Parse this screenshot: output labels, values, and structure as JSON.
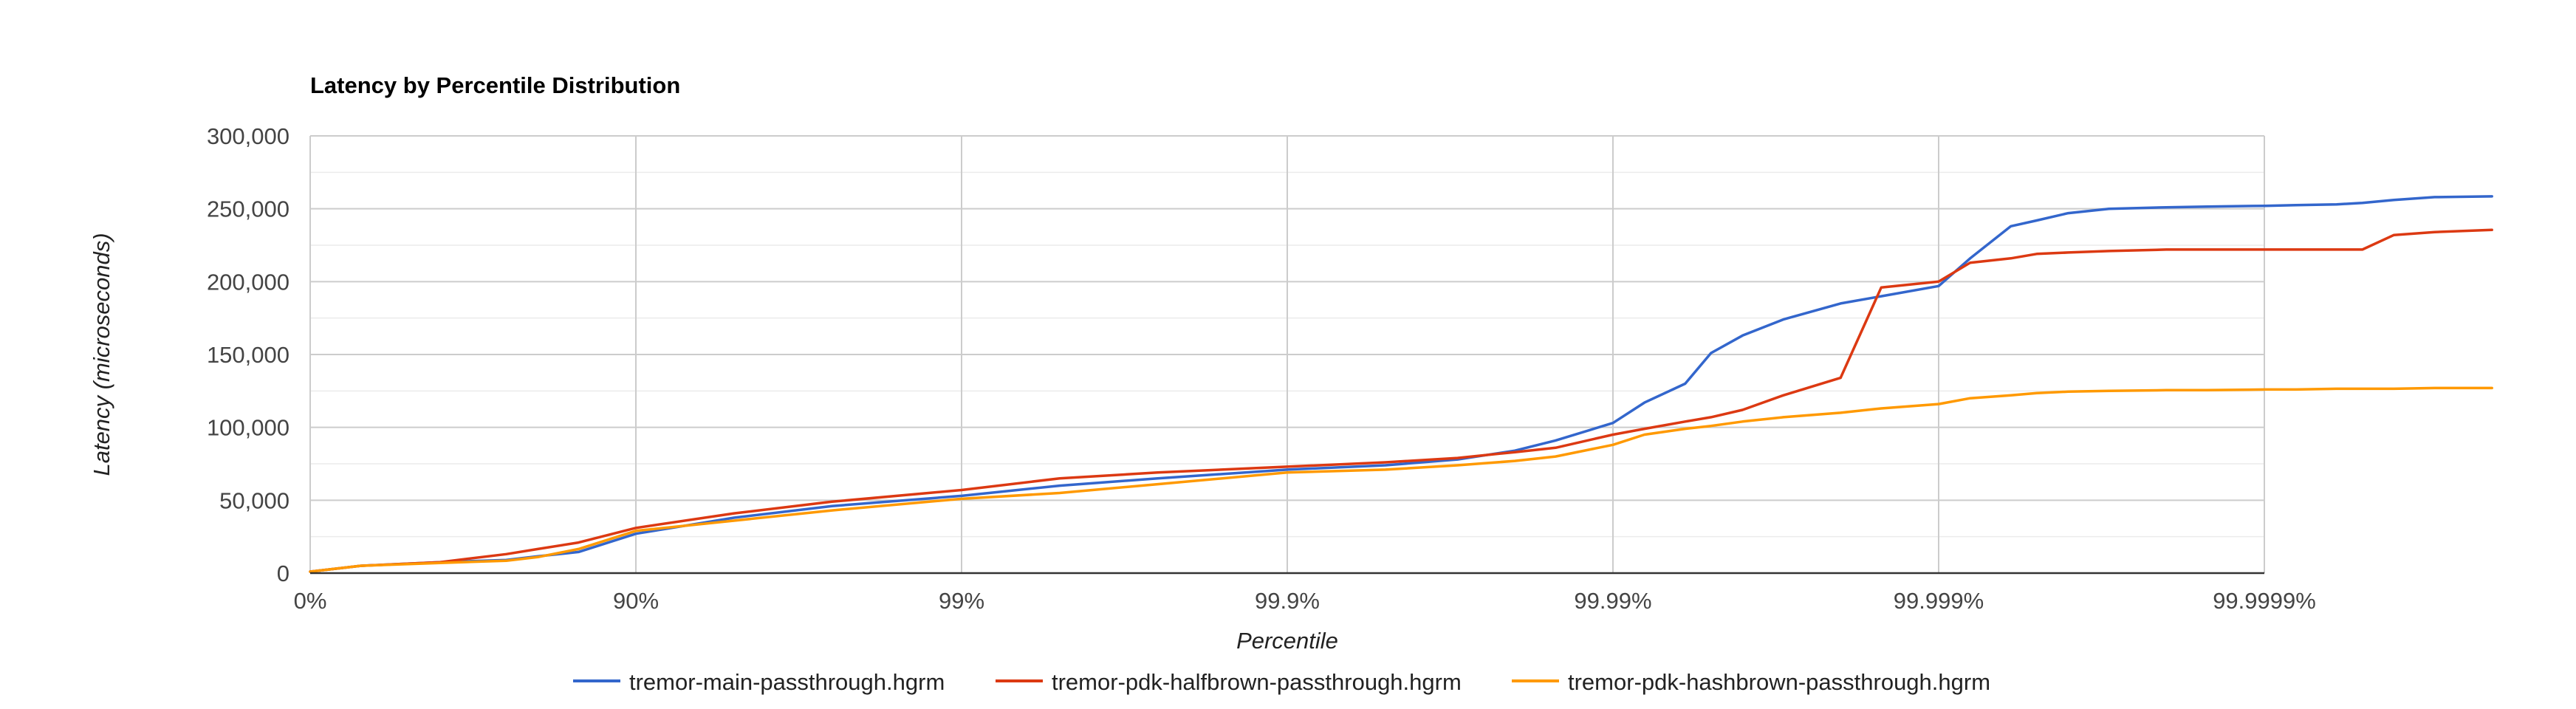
{
  "chart_data": {
    "type": "line",
    "title": "Latency by Percentile Distribution",
    "xlabel": "Percentile",
    "ylabel": "Latency (microseconds)",
    "x_scale": "log-reciprocal (percentile nines)",
    "x_ticks": [
      "0%",
      "90%",
      "99%",
      "99.9%",
      "99.99%",
      "99.999%",
      "99.9999%"
    ],
    "y_ticks": [
      "0",
      "50,000",
      "100,000",
      "150,000",
      "200,000",
      "250,000",
      "300,000"
    ],
    "ylim": [
      0,
      300000
    ],
    "grid": true,
    "legend_position": "bottom",
    "series": [
      {
        "name": "tremor-main-passthrough.hgrm",
        "color": "#3366cc",
        "points": [
          [
            0,
            1000
          ],
          [
            30,
            5000
          ],
          [
            60,
            7500
          ],
          [
            75,
            9000
          ],
          [
            80,
            11500
          ],
          [
            85,
            14500
          ],
          [
            90,
            27000
          ],
          [
            95,
            38000
          ],
          [
            97.5,
            46000
          ],
          [
            99,
            53000
          ],
          [
            99.5,
            60000
          ],
          [
            99.75,
            65000
          ],
          [
            99.9,
            71000
          ],
          [
            99.95,
            74000
          ],
          [
            99.97,
            78000
          ],
          [
            99.98,
            84000
          ],
          [
            99.985,
            91000
          ],
          [
            99.99,
            103000
          ],
          [
            99.992,
            117000
          ],
          [
            99.994,
            130000
          ],
          [
            99.995,
            151000
          ],
          [
            99.996,
            163000
          ],
          [
            99.997,
            174000
          ],
          [
            99.998,
            185000
          ],
          [
            99.9985,
            190000
          ],
          [
            99.999,
            197000
          ],
          [
            99.9992,
            216000
          ],
          [
            99.9994,
            238000
          ],
          [
            99.9995,
            242000
          ],
          [
            99.9996,
            247000
          ],
          [
            99.9997,
            250000
          ],
          [
            99.9998,
            251000
          ],
          [
            99.99985,
            251500
          ],
          [
            99.9999,
            252000
          ],
          [
            99.99992,
            252500
          ],
          [
            99.99994,
            253000
          ],
          [
            99.99995,
            254000
          ],
          [
            99.99996,
            256000
          ],
          [
            99.99997,
            258000
          ],
          [
            99.99998,
            258500
          ]
        ]
      },
      {
        "name": "tremor-pdk-halfbrown-passthrough.hgrm",
        "color": "#dc3912",
        "points": [
          [
            0,
            1000
          ],
          [
            30,
            5000
          ],
          [
            60,
            7500
          ],
          [
            75,
            13000
          ],
          [
            80,
            16500
          ],
          [
            85,
            21000
          ],
          [
            90,
            31000
          ],
          [
            95,
            41000
          ],
          [
            97.5,
            49000
          ],
          [
            99,
            57000
          ],
          [
            99.5,
            65000
          ],
          [
            99.75,
            69000
          ],
          [
            99.9,
            73000
          ],
          [
            99.95,
            76000
          ],
          [
            99.97,
            79000
          ],
          [
            99.98,
            83000
          ],
          [
            99.985,
            86000
          ],
          [
            99.99,
            95000
          ],
          [
            99.992,
            99000
          ],
          [
            99.994,
            104000
          ],
          [
            99.995,
            107000
          ],
          [
            99.996,
            112000
          ],
          [
            99.997,
            122000
          ],
          [
            99.998,
            134000
          ],
          [
            99.9985,
            196000
          ],
          [
            99.999,
            200000
          ],
          [
            99.9992,
            213000
          ],
          [
            99.9994,
            216000
          ],
          [
            99.9995,
            219000
          ],
          [
            99.9996,
            220000
          ],
          [
            99.9997,
            221000
          ],
          [
            99.9998,
            222000
          ],
          [
            99.99985,
            222000
          ],
          [
            99.9999,
            222000
          ],
          [
            99.99992,
            222000
          ],
          [
            99.99994,
            222000
          ],
          [
            99.99995,
            222000
          ],
          [
            99.99996,
            232000
          ],
          [
            99.99997,
            234000
          ],
          [
            99.99998,
            235500
          ]
        ]
      },
      {
        "name": "tremor-pdk-hashbrown-passthrough.hgrm",
        "color": "#ff9900",
        "points": [
          [
            0,
            1000
          ],
          [
            30,
            5000
          ],
          [
            60,
            7000
          ],
          [
            75,
            8500
          ],
          [
            80,
            11000
          ],
          [
            85,
            16500
          ],
          [
            90,
            29000
          ],
          [
            95,
            36000
          ],
          [
            97.5,
            43000
          ],
          [
            99,
            51000
          ],
          [
            99.5,
            55000
          ],
          [
            99.75,
            61000
          ],
          [
            99.9,
            69000
          ],
          [
            99.95,
            71000
          ],
          [
            99.97,
            74000
          ],
          [
            99.98,
            77000
          ],
          [
            99.985,
            80000
          ],
          [
            99.99,
            88000
          ],
          [
            99.992,
            95000
          ],
          [
            99.994,
            99000
          ],
          [
            99.995,
            101000
          ],
          [
            99.996,
            104000
          ],
          [
            99.997,
            107000
          ],
          [
            99.998,
            110000
          ],
          [
            99.9985,
            113000
          ],
          [
            99.999,
            116000
          ],
          [
            99.9992,
            120000
          ],
          [
            99.9994,
            122000
          ],
          [
            99.9995,
            123500
          ],
          [
            99.9996,
            124500
          ],
          [
            99.9997,
            125000
          ],
          [
            99.9998,
            125500
          ],
          [
            99.99985,
            125500
          ],
          [
            99.9999,
            126000
          ],
          [
            99.99992,
            126000
          ],
          [
            99.99994,
            126500
          ],
          [
            99.99995,
            126500
          ],
          [
            99.99996,
            126500
          ],
          [
            99.99997,
            127000
          ],
          [
            99.99998,
            127000
          ]
        ]
      }
    ]
  }
}
